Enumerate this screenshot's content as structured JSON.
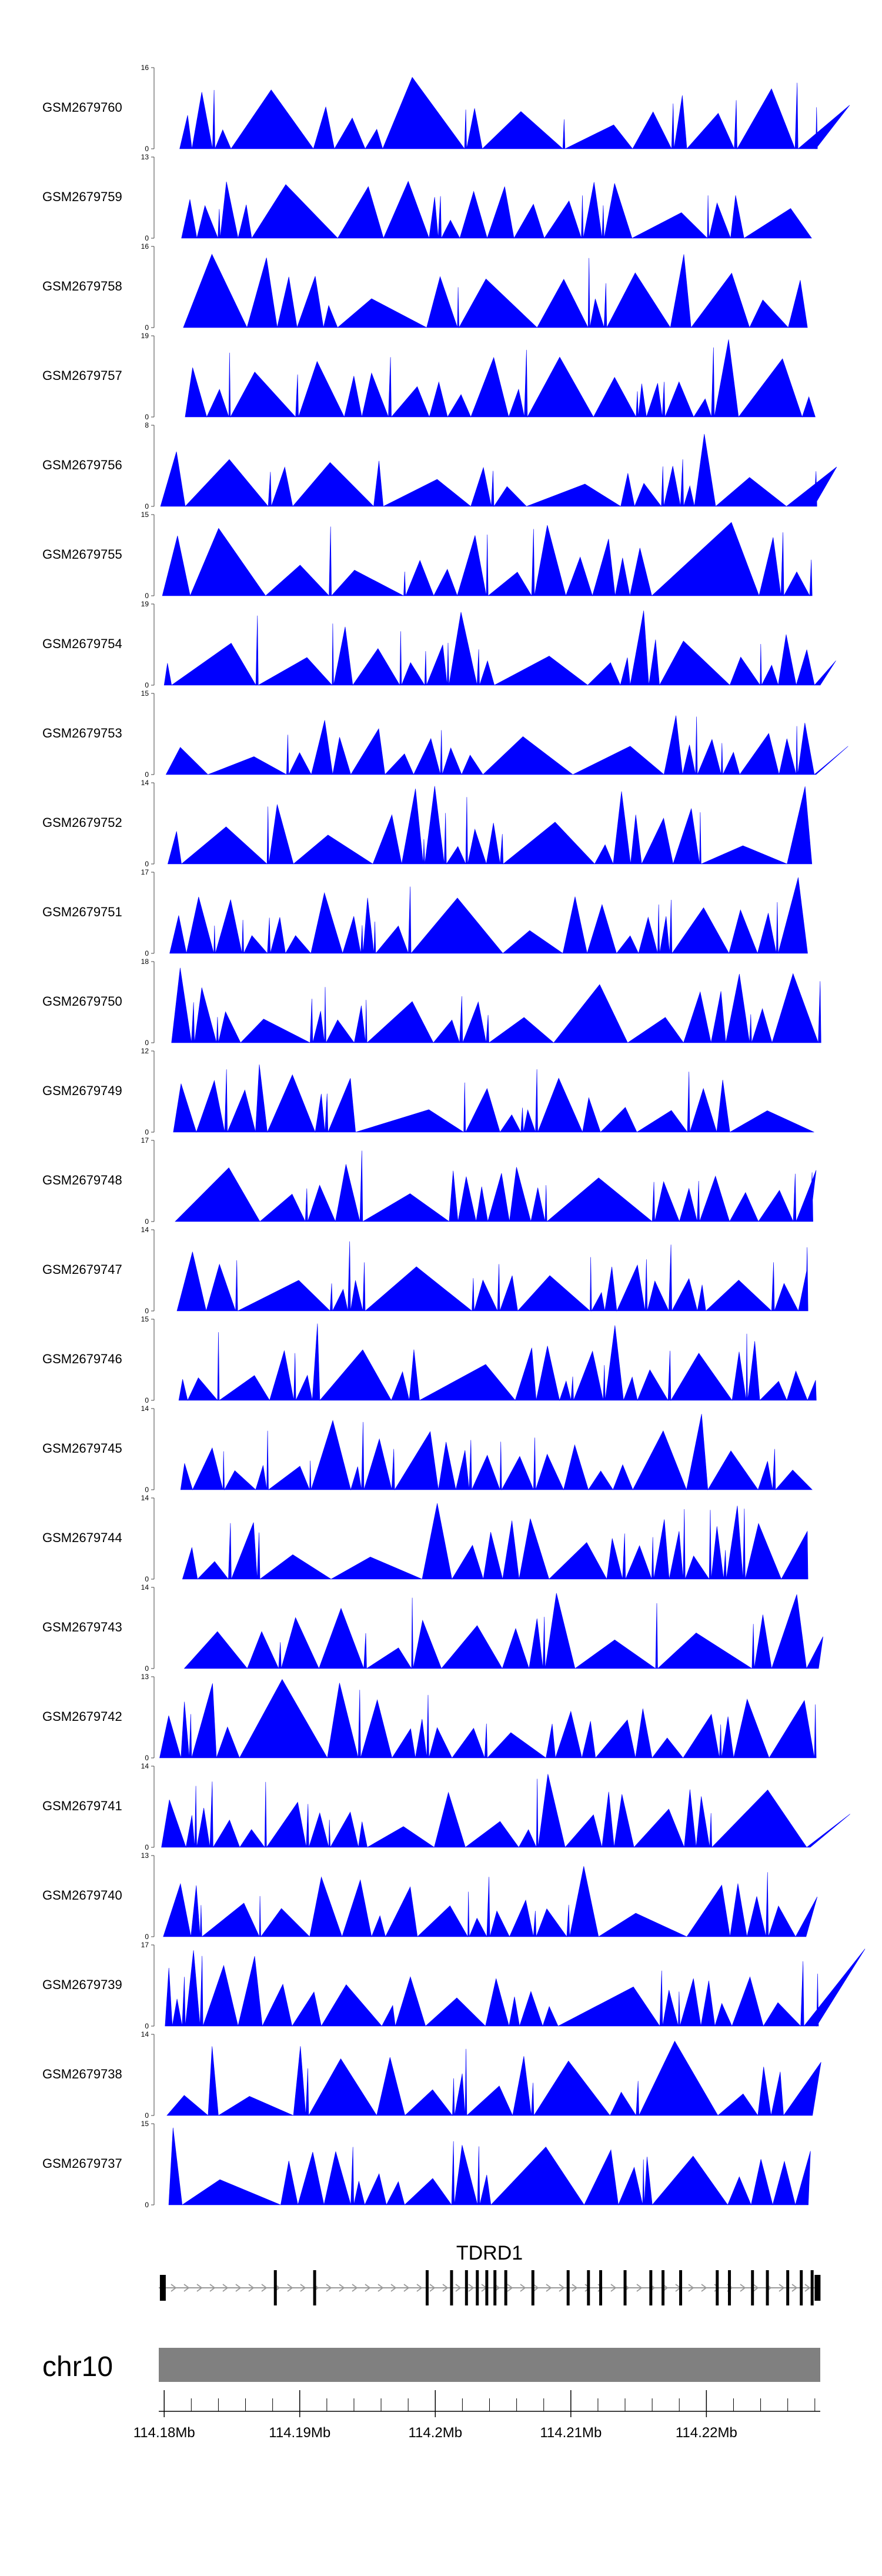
{
  "chart_data": {
    "type": "area",
    "tracks": [
      {
        "name": "GSM2679760",
        "ymax": "16",
        "ymin": "0"
      },
      {
        "name": "GSM2679759",
        "ymax": "13",
        "ymin": "0"
      },
      {
        "name": "GSM2679758",
        "ymax": "16",
        "ymin": "0"
      },
      {
        "name": "GSM2679757",
        "ymax": "19",
        "ymin": "0"
      },
      {
        "name": "GSM2679756",
        "ymax": "8",
        "ymin": "0"
      },
      {
        "name": "GSM2679755",
        "ymax": "15",
        "ymin": "0"
      },
      {
        "name": "GSM2679754",
        "ymax": "19",
        "ymin": "0"
      },
      {
        "name": "GSM2679753",
        "ymax": "15",
        "ymin": "0"
      },
      {
        "name": "GSM2679752",
        "ymax": "14",
        "ymin": "0"
      },
      {
        "name": "GSM2679751",
        "ymax": "17",
        "ymin": "0"
      },
      {
        "name": "GSM2679750",
        "ymax": "18",
        "ymin": "0"
      },
      {
        "name": "GSM2679749",
        "ymax": "12",
        "ymin": "0"
      },
      {
        "name": "GSM2679748",
        "ymax": "17",
        "ymin": "0"
      },
      {
        "name": "GSM2679747",
        "ymax": "14",
        "ymin": "0"
      },
      {
        "name": "GSM2679746",
        "ymax": "15",
        "ymin": "0"
      },
      {
        "name": "GSM2679745",
        "ymax": "14",
        "ymin": "0"
      },
      {
        "name": "GSM2679744",
        "ymax": "14",
        "ymin": "0"
      },
      {
        "name": "GSM2679743",
        "ymax": "14",
        "ymin": "0"
      },
      {
        "name": "GSM2679742",
        "ymax": "13",
        "ymin": "0"
      },
      {
        "name": "GSM2679741",
        "ymax": "14",
        "ymin": "0"
      },
      {
        "name": "GSM2679740",
        "ymax": "13",
        "ymin": "0"
      },
      {
        "name": "GSM2679739",
        "ymax": "17",
        "ymin": "0"
      },
      {
        "name": "GSM2679738",
        "ymax": "14",
        "ymin": "0"
      },
      {
        "name": "GSM2679737",
        "ymax": "15",
        "ymin": "0"
      }
    ],
    "gene": {
      "name": "TDRD1",
      "start_mb": 114.1796,
      "end_mb": 114.2284,
      "exons_mb": [
        114.1799,
        114.1882,
        114.1911,
        114.1994,
        114.2012,
        114.2023,
        114.2031,
        114.2038,
        114.2044,
        114.2052,
        114.2072,
        114.2098,
        114.2113,
        114.2122,
        114.214,
        114.2159,
        114.2168,
        114.2181,
        114.2208,
        114.2217,
        114.2234,
        114.2245,
        114.226,
        114.227,
        114.2278,
        114.2282
      ]
    },
    "chromosome": "chr10",
    "x_range_mb": [
      114.1796,
      114.2284
    ],
    "x_ticks": [
      {
        "value": 114.18,
        "label": "114.18Mb"
      },
      {
        "value": 114.19,
        "label": "114.19Mb"
      },
      {
        "value": 114.2,
        "label": "114.2Mb"
      },
      {
        "value": 114.21,
        "label": "114.21Mb"
      },
      {
        "value": 114.22,
        "label": "114.22Mb"
      }
    ],
    "colors": {
      "signal": "#0000ff",
      "exon": "#000000",
      "ideogram": "#808080"
    }
  }
}
